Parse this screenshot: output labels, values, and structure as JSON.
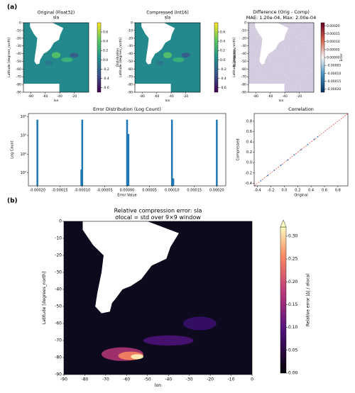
{
  "panels": [
    "(a)",
    "(b)"
  ],
  "chart_data": [
    {
      "type": "heatmap",
      "title": "Original (Float32)",
      "subtitle": "sla",
      "xlabel": "lon",
      "ylabel": "Latitude [degrees_north]",
      "xlim": [
        -90,
        0
      ],
      "ylim": [
        -90,
        0
      ],
      "xticks": [
        -80,
        -60,
        -40,
        -20
      ],
      "yticks": [
        0,
        -10,
        -20,
        -30,
        -40,
        -50,
        -60,
        -70,
        -80,
        -90
      ],
      "colormap": "viridis",
      "colorbar": {
        "label": "Distribution",
        "lim": [
          -0.7,
          0.8
        ],
        "ticks": [
          0.6,
          0.4,
          0.2,
          {
            "value": 0,
            "label": "0.0"
          },
          -0.2,
          -0.4,
          -0.6
        ]
      }
    },
    {
      "type": "heatmap",
      "title": "Compressed (Int16)",
      "subtitle": "sla",
      "xlabel": "lon",
      "ylabel": "Latitude [degrees_north]",
      "xlim": [
        -90,
        0
      ],
      "ylim": [
        -90,
        0
      ],
      "xticks": [
        -80,
        -60,
        -40,
        -20
      ],
      "yticks": [
        0,
        -10,
        -20,
        -30,
        -40,
        -50,
        -60,
        -70,
        -80,
        -90
      ],
      "colormap": "viridis",
      "colorbar": {
        "label": "Distribution",
        "lim": [
          -0.7,
          0.8
        ],
        "ticks": [
          0.6,
          0.4,
          0.2,
          {
            "value": 0,
            "label": "0.0"
          },
          -0.2,
          -0.4,
          -0.6
        ]
      }
    },
    {
      "type": "heatmap",
      "title": "Difference (Orig - Comp)",
      "subtitle": "MAE: 1.20e-04, Max: 2.00e-04",
      "xlabel": "lon",
      "ylabel": "Latitude [degrees_north]",
      "xlim": [
        -90,
        0
      ],
      "ylim": [
        -90,
        0
      ],
      "xticks": [
        -80,
        -60,
        -40,
        -20
      ],
      "yticks": [
        0,
        -10,
        -20,
        -30,
        -40,
        -50,
        -60,
        -70,
        -80,
        -90
      ],
      "colormap": "RdBu",
      "colorbar": {
        "label": "Error",
        "lim": [
          -0.00022,
          0.00022
        ],
        "ticks": [
          {
            "value": 0.0002,
            "label": "0.00020"
          },
          {
            "value": 0.00015,
            "label": "0.00015"
          },
          {
            "value": 0.0001,
            "label": "0.00010"
          },
          {
            "value": 5e-05,
            "label": "0.00005"
          },
          {
            "value": 0,
            "label": "0.00000"
          },
          {
            "value": -5e-05,
            "label": "-0.00005"
          },
          {
            "value": -0.0001,
            "label": "-0.00010"
          },
          {
            "value": -0.00015,
            "label": "-0.00015"
          },
          {
            "value": -0.0002,
            "label": "-0.00020"
          }
        ]
      }
    },
    {
      "type": "histogram",
      "title": "Error Distribution (Log Count)",
      "xlabel": "Error Value",
      "ylabel": "Log Count",
      "log_y": true,
      "color": "#1f77b4",
      "x": [
        -0.0002,
        -0.000102,
        -0.0001,
        0,
        3e-06,
        0.0001,
        0.000103,
        0.0002
      ],
      "values": [
        70000,
        150,
        70000,
        70000,
        12000,
        70000,
        50,
        70000
      ],
      "xlim": [
        -0.00022,
        0.00022
      ],
      "ylim": [
        20,
        150000
      ],
      "xticks": [
        {
          "value": -0.0002,
          "label": "-0.00020"
        },
        {
          "value": -0.00015,
          "label": "-0.00015"
        },
        {
          "value": -0.0001,
          "label": "-0.00010"
        },
        {
          "value": -5e-05,
          "label": "-0.00005"
        },
        {
          "value": 0,
          "label": "0.00000"
        },
        {
          "value": 5e-05,
          "label": "0.00005"
        },
        {
          "value": 0.0001,
          "label": "0.00010"
        },
        {
          "value": 0.00015,
          "label": "0.00015"
        },
        {
          "value": 0.0002,
          "label": "0.00020"
        }
      ],
      "yticks": [
        {
          "value": 100,
          "label": "10²"
        },
        {
          "value": 1000,
          "label": "10³"
        },
        {
          "value": 10000,
          "label": "10⁴"
        },
        {
          "value": 100000,
          "label": "10⁵"
        }
      ]
    },
    {
      "type": "scatter",
      "title": "Correlation",
      "xlabel": "Original",
      "ylabel": "Compressed",
      "color": "#1f77b4",
      "reference_color": "#e03c31",
      "x": [
        -0.35,
        -0.25,
        -0.15,
        -0.05,
        0.05,
        0.15,
        0.25,
        0.35,
        0.45,
        0.5
      ],
      "y": [
        -0.35,
        -0.25,
        -0.15,
        -0.05,
        0.05,
        0.15,
        0.25,
        0.35,
        0.45,
        0.5
      ],
      "xlim": [
        -0.45,
        0.95
      ],
      "ylim": [
        -0.45,
        0.95
      ],
      "xticks": [
        -0.4,
        -0.2,
        {
          "value": 0,
          "label": "0.0"
        },
        0.2,
        0.4,
        0.6,
        0.8
      ],
      "yticks": [
        -0.4,
        -0.2,
        {
          "value": 0,
          "label": "0.0"
        },
        0.2,
        0.4,
        0.6,
        0.8
      ]
    },
    {
      "type": "heatmap",
      "title": "Relative compression error: sla",
      "subtitle": "σlocal = std over 9×9 window",
      "xlabel": "lon",
      "ylabel": "Latitude [degrees_north]",
      "xlim": [
        -90,
        0
      ],
      "ylim": [
        -90,
        0
      ],
      "xticks": [
        -90,
        -80,
        -70,
        -60,
        -50,
        -40,
        -30,
        -20,
        -10,
        0
      ],
      "yticks": [
        0,
        -10,
        -20,
        -30,
        -40,
        -50,
        -60,
        -70,
        -80,
        -90
      ],
      "colormap": "magma",
      "colorbar": {
        "label": "Relative error |Δ| / σlocal",
        "lim": [
          0,
          0.32
        ],
        "extend": "max",
        "ticks": [
          {
            "value": 0,
            "label": "0.00"
          },
          0.05,
          {
            "value": 0.1,
            "label": "0.10"
          },
          0.15,
          {
            "value": 0.2,
            "label": "0.20"
          },
          0.25,
          {
            "value": 0.3,
            "label": "0.30"
          }
        ]
      }
    }
  ]
}
